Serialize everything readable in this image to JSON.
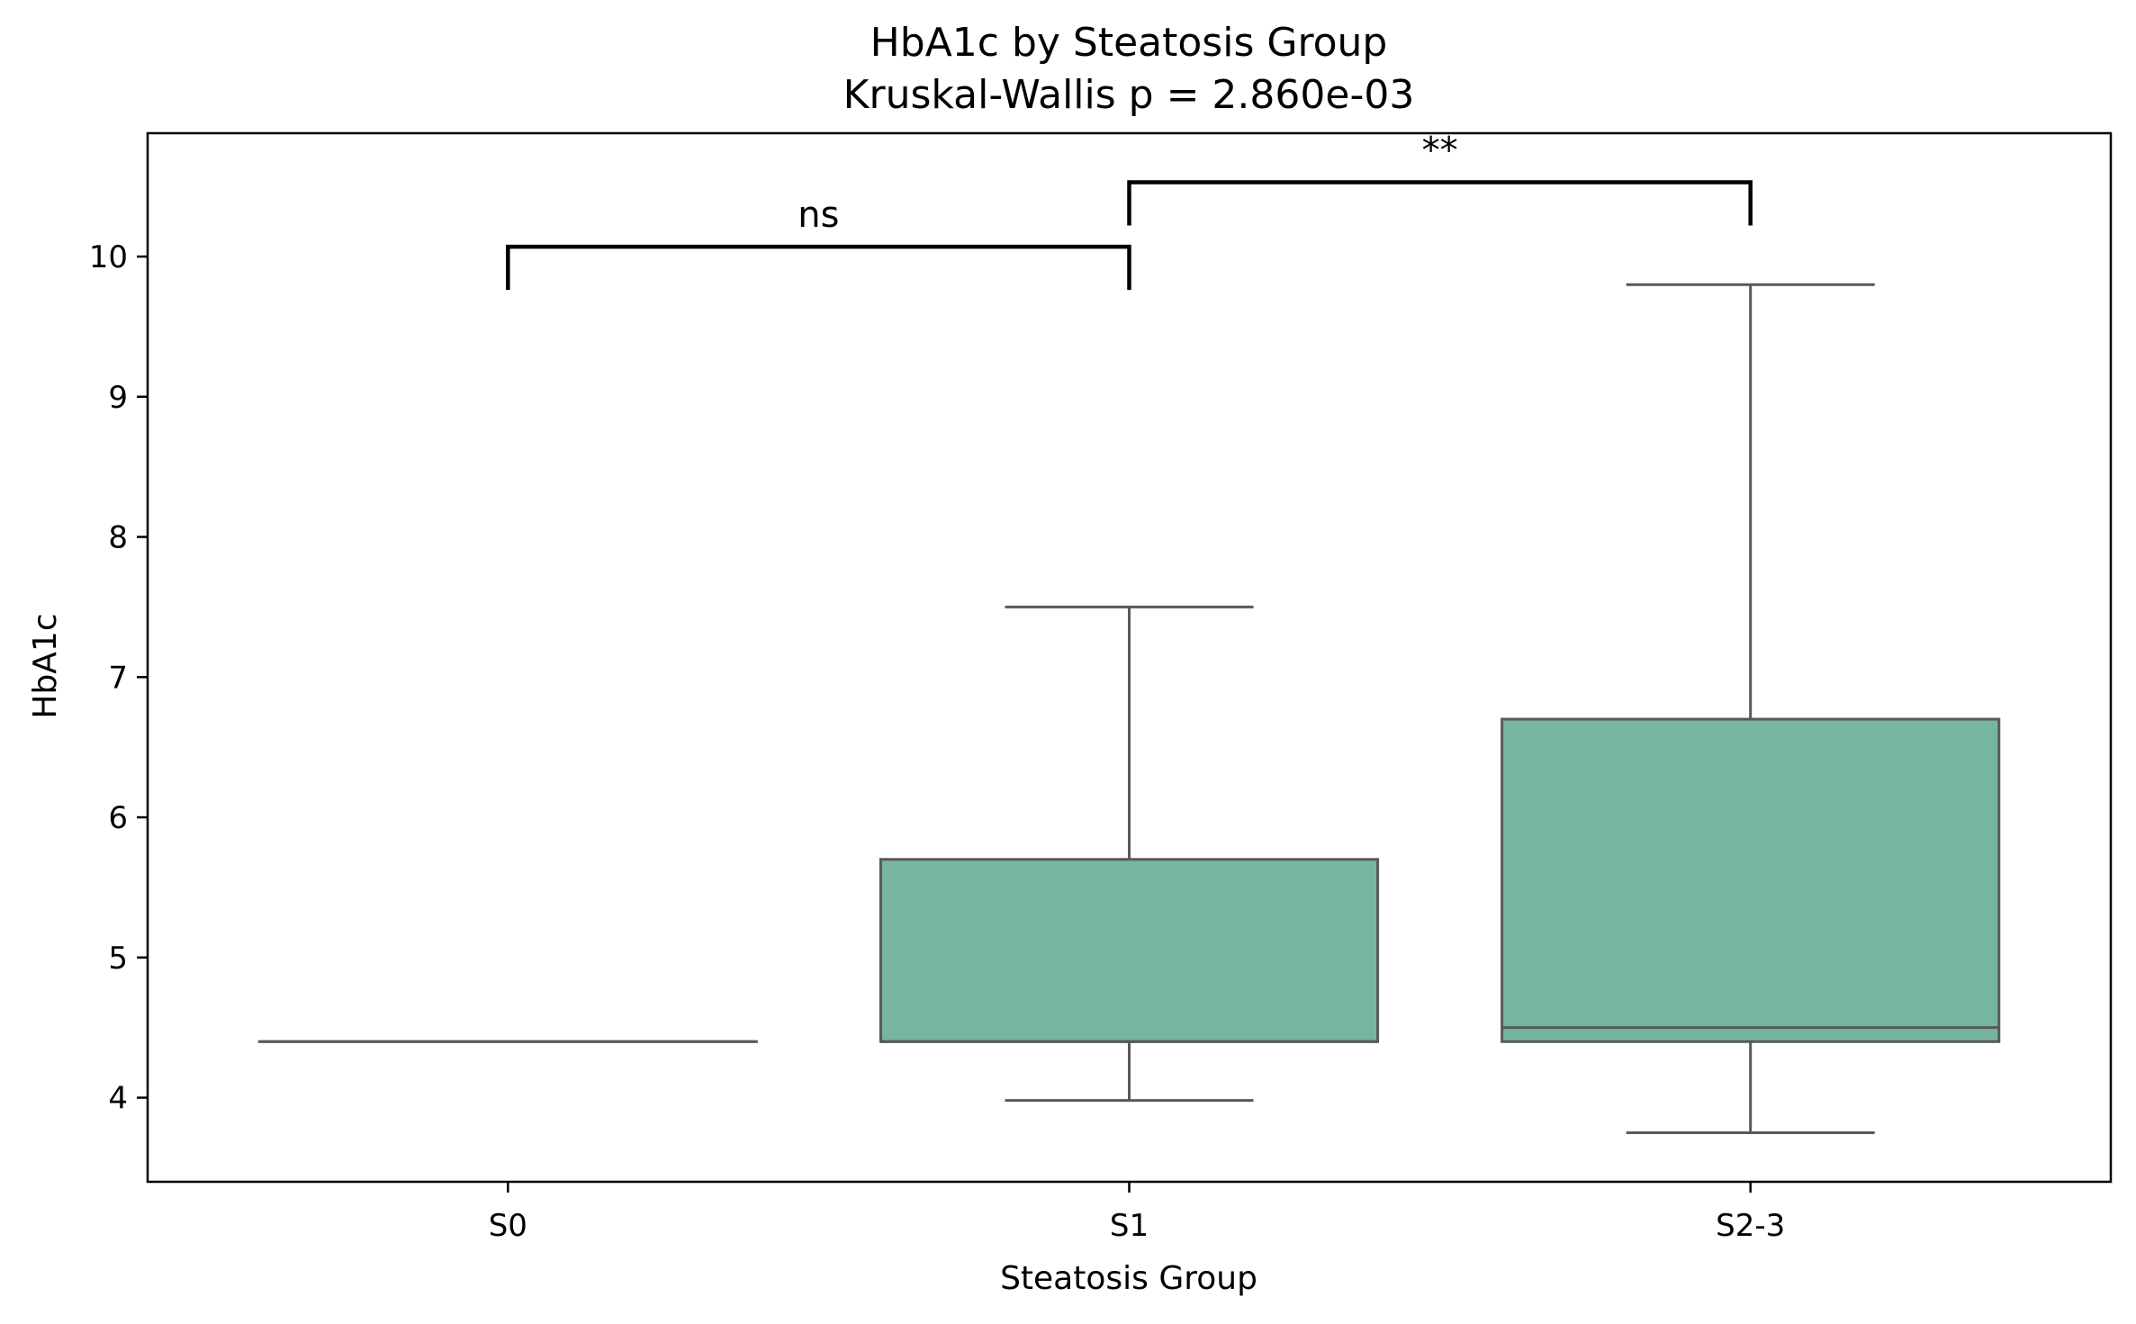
{
  "chart_data": {
    "type": "box",
    "title": "HbA1c by Steatosis Group",
    "subtitle": "Kruskal-Wallis p = 2.860e-03",
    "xlabel": "Steatosis Group",
    "ylabel": "HbA1c",
    "categories": [
      "S0",
      "S1",
      "S2-3"
    ],
    "boxes": [
      {
        "category": "S0",
        "whisker_low": 4.4,
        "q1": 4.4,
        "median": 4.4,
        "q3": 4.4,
        "whisker_high": 4.4
      },
      {
        "category": "S1",
        "whisker_low": 3.98,
        "q1": 4.4,
        "median": 4.4,
        "q3": 5.7,
        "whisker_high": 7.5
      },
      {
        "category": "S2-3",
        "whisker_low": 3.75,
        "q1": 4.4,
        "median": 4.5,
        "q3": 6.7,
        "whisker_high": 9.8
      }
    ],
    "yticks": [
      4,
      5,
      6,
      7,
      8,
      9,
      10
    ],
    "ylim": [
      3.4,
      10.88
    ],
    "grid": false,
    "box_color": "#76b6a1",
    "line_color": "#595959",
    "significance": [
      {
        "from": "S0",
        "to": "S1",
        "label": "ns",
        "y": 10.07
      },
      {
        "from": "S1",
        "to": "S2-3",
        "label": "**",
        "y": 10.53
      }
    ]
  }
}
